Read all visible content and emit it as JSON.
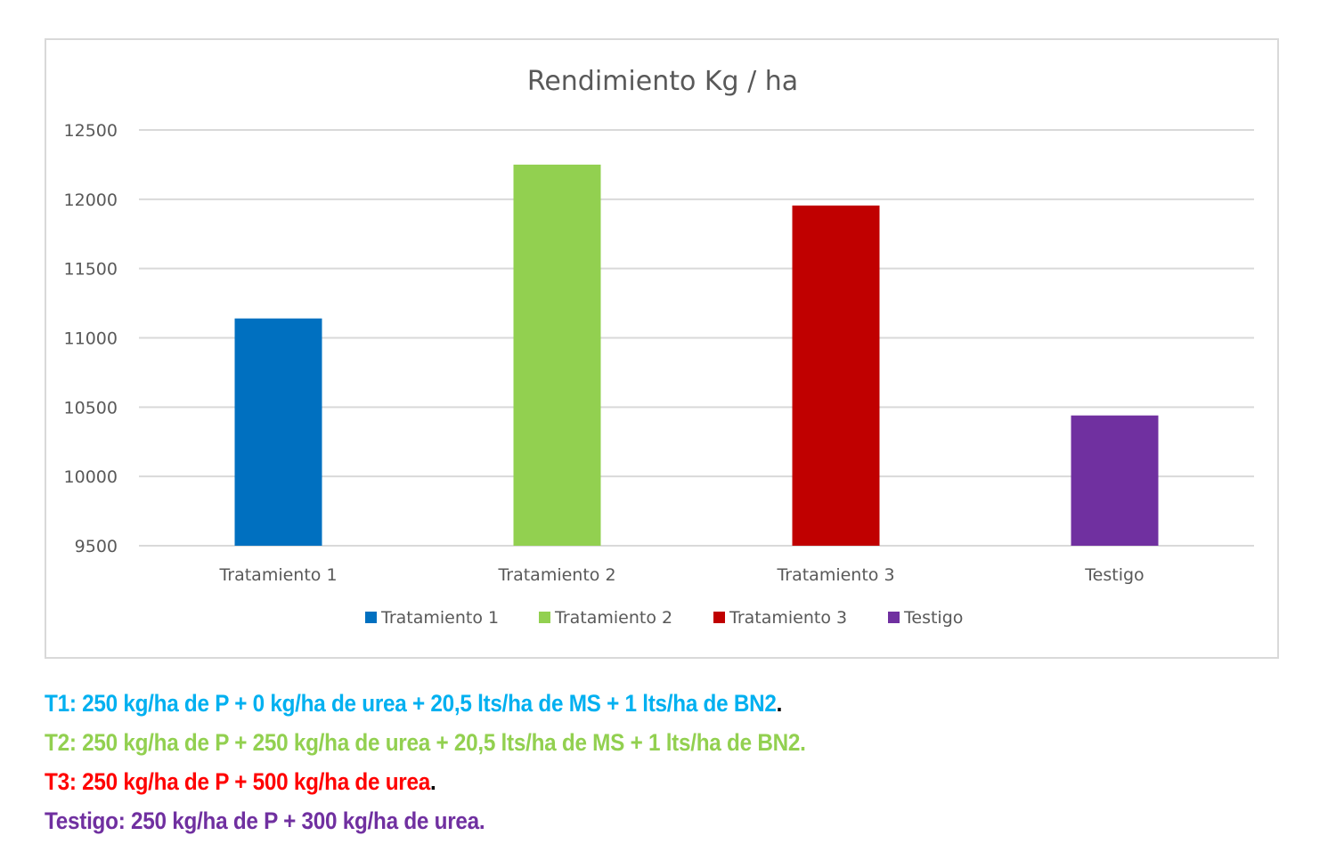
{
  "chart_data": {
    "type": "bar",
    "title": "Rendimiento Kg / ha",
    "categories": [
      "Tratamiento 1",
      "Tratamiento 2",
      "Tratamiento 3",
      "Testigo"
    ],
    "values": [
      11140,
      12250,
      11955,
      10440
    ],
    "colors": [
      "#0070c0",
      "#92d050",
      "#c00000",
      "#7030a0"
    ],
    "ylim": [
      9500,
      12500
    ],
    "yticks": [
      9500,
      10000,
      10500,
      11000,
      11500,
      12000,
      12500
    ],
    "grid": true,
    "legend": {
      "position": "bottom",
      "entries": [
        "Tratamiento 1",
        "Tratamiento 2",
        "Tratamiento 3",
        "Testigo"
      ]
    }
  },
  "notes": [
    {
      "text": "T1: 250 kg/ha de P + 0 kg/ha de urea + 20,5 lts/ha de MS + 1 lts/ha de BN2",
      "suffix": ".",
      "color": "#00b0f0"
    },
    {
      "text": "T2: 250 kg/ha de P + 250 kg/ha de urea + 20,5 lts/ha de MS + 1 lts/ha de BN2.",
      "suffix": "",
      "color": "#92d050"
    },
    {
      "text": "T3: 250 kg/ha de P + 500 kg/ha de urea",
      "suffix": ".",
      "color": "#ff0000"
    },
    {
      "text": "Testigo: 250 kg/ha de P + 300 kg/ha de urea.",
      "suffix": "",
      "color": "#7030a0"
    }
  ]
}
